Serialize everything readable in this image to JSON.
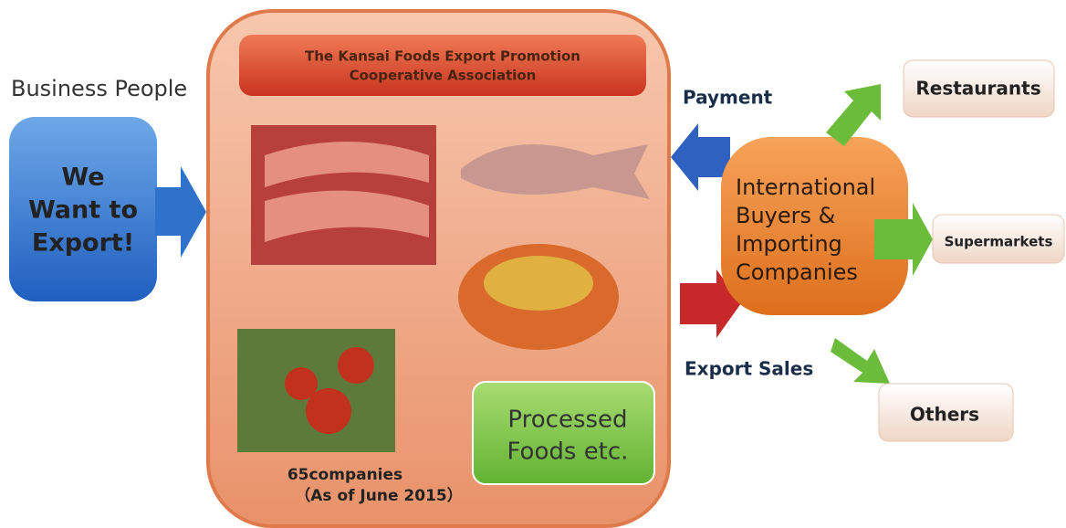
{
  "business": {
    "label": "Business People",
    "lines": [
      "We",
      "Want to",
      "Export!"
    ]
  },
  "association": {
    "title": [
      "The Kansai Foods Export Promotion",
      "Cooperative Association"
    ],
    "processed": [
      "Processed",
      "Foods etc."
    ],
    "members": [
      "65companies",
      "（As of June 2015）"
    ]
  },
  "flows": {
    "payment": "Payment",
    "export_sales": "Export Sales"
  },
  "buyers": {
    "lines": [
      "International",
      "Buyers &",
      "Importing",
      "Companies"
    ]
  },
  "destinations": [
    "Restaurants",
    "Supermarkets",
    "Others"
  ]
}
